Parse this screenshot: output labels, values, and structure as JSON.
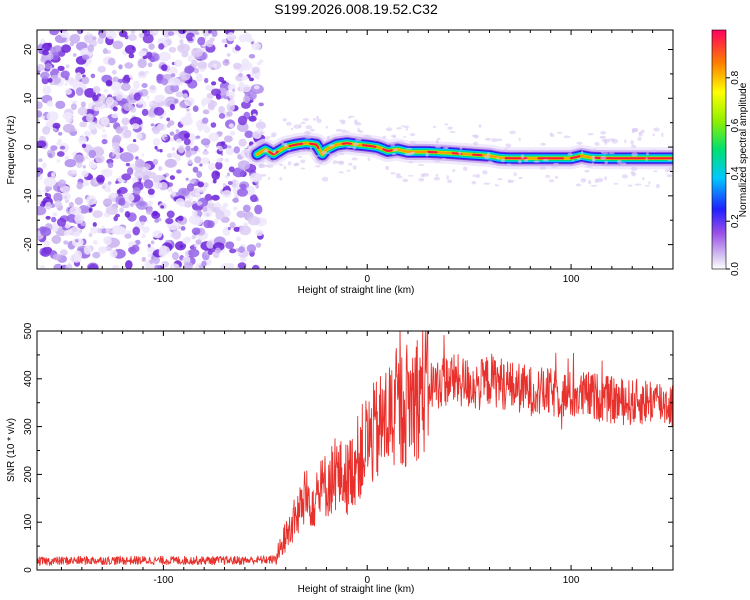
{
  "title": "S199.2026.008.19.52.C32",
  "chart_data": [
    {
      "type": "heatmap",
      "xlabel": "Height of straight line (km)",
      "ylabel": "Frequency (Hz)",
      "xlim": [
        -162,
        150
      ],
      "ylim": [
        -25,
        24
      ],
      "xticks": [
        -100,
        0,
        100
      ],
      "yticks": [
        -20,
        -10,
        0,
        10,
        20
      ],
      "noise_region_x": [
        -162,
        -52
      ],
      "ridge": {
        "x": [
          -54,
          -50,
          -46,
          -40,
          -35,
          -30,
          -25,
          -22,
          -20,
          -15,
          -10,
          -5,
          0,
          5,
          10,
          15,
          20,
          30,
          40,
          50,
          60,
          65,
          70,
          80,
          90,
          100,
          105,
          110,
          120,
          130,
          140,
          150
        ],
        "freq": [
          -1.5,
          -0.5,
          -1.5,
          0,
          0.5,
          0.8,
          0.5,
          -1.5,
          -0.5,
          0.5,
          0.8,
          0.5,
          0.3,
          0,
          -0.8,
          -0.5,
          -1.0,
          -1.0,
          -1.2,
          -1.5,
          -1.8,
          -2.2,
          -2.3,
          -2.3,
          -2.3,
          -2.3,
          -1.8,
          -2.2,
          -2.3,
          -2.3,
          -2.3,
          -2.3
        ]
      },
      "colorbar": {
        "label": "Normalized spectral amplitude",
        "range": [
          0,
          1
        ],
        "ticks": [
          "0.0",
          "0.2",
          "0.4",
          "0.6",
          "0.8"
        ]
      }
    },
    {
      "type": "line",
      "xlabel": "Height of straight line (km)",
      "ylabel": "SNR (10 * v/v)",
      "xlim": [
        -162,
        150
      ],
      "ylim": [
        0,
        500
      ],
      "xticks": [
        -100,
        0,
        100
      ],
      "yticks": [
        0,
        100,
        200,
        300,
        400,
        500
      ],
      "series": [
        {
          "name": "SNR",
          "color": "#e8312c",
          "x": [
            -162,
            -140,
            -120,
            -100,
            -80,
            -60,
            -45,
            -40,
            -35,
            -30,
            -25,
            -20,
            -15,
            -10,
            -5,
            0,
            5,
            10,
            15,
            20,
            25,
            30,
            35,
            40,
            45,
            50,
            55,
            60,
            70,
            80,
            90,
            100,
            110,
            120,
            130,
            140,
            150
          ],
          "y": [
            18,
            20,
            20,
            20,
            20,
            20,
            22,
            70,
            110,
            150,
            150,
            180,
            200,
            190,
            230,
            270,
            290,
            320,
            330,
            350,
            370,
            385,
            390,
            400,
            395,
            390,
            385,
            400,
            385,
            375,
            370,
            365,
            365,
            355,
            350,
            355,
            345
          ]
        }
      ]
    }
  ]
}
